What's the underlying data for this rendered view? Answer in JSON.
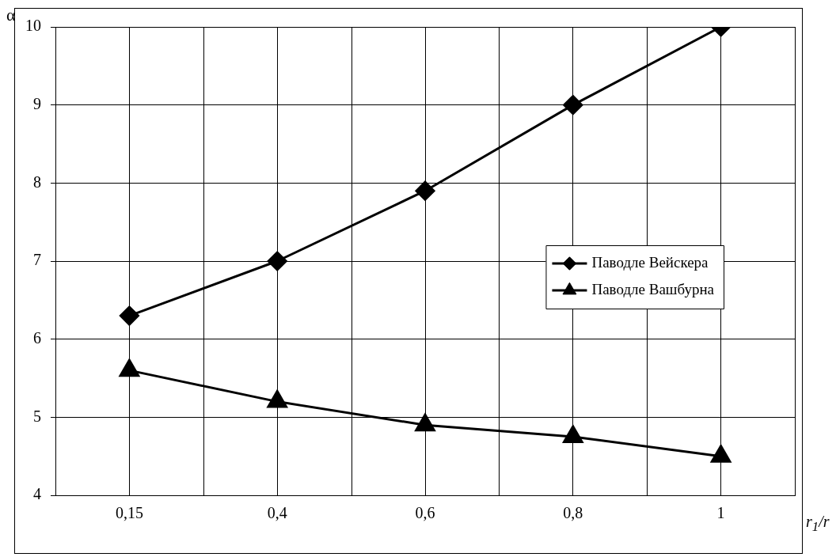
{
  "chart_data": {
    "type": "line",
    "xlabel": "r$_{1}$/r",
    "ylabel": "α",
    "categories": [
      "0,15",
      "0,4",
      "0,6",
      "0,8",
      "1"
    ],
    "series": [
      {
        "name": "Паводле Вейскера",
        "color": "#000000",
        "marker": "diamond",
        "values": [
          6.3,
          7.0,
          7.9,
          9.0,
          10.0
        ]
      },
      {
        "name": "Паводле Вашбурна",
        "color": "#000000",
        "marker": "triangle",
        "values": [
          5.6,
          5.2,
          4.9,
          4.75,
          4.5
        ]
      }
    ],
    "ylim": [
      4,
      10
    ],
    "yticks": [
      4,
      5,
      6,
      7,
      8,
      9,
      10
    ],
    "grid": true,
    "legend": "right",
    "line_style": "solid"
  }
}
